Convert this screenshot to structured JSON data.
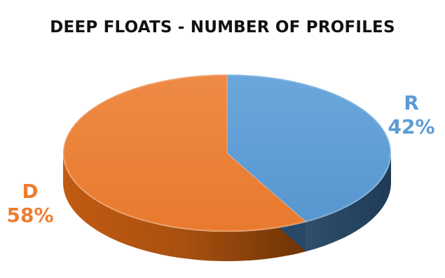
{
  "chart_data": {
    "type": "pie",
    "title": "DEEP FLOATS - NUMBER OF PROFILES",
    "slices": [
      {
        "label": "R",
        "value": 42,
        "percent_label": "42%",
        "color": "#5b9bd5"
      },
      {
        "label": "D",
        "value": 58,
        "percent_label": "58%",
        "color": "#ed7d31"
      }
    ],
    "legend": "none",
    "style": "3d"
  }
}
